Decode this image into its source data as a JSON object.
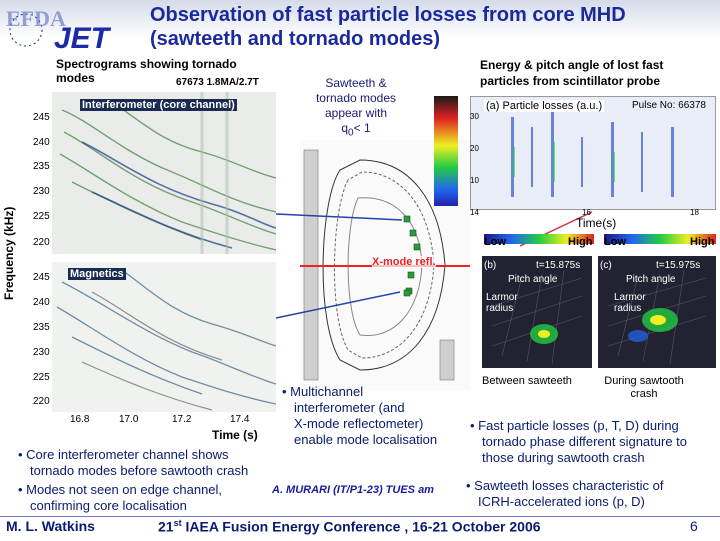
{
  "header": {
    "title_line1": "Observation of fast particle losses from core MHD",
    "title_line2": "(sawteeth and tornado modes)",
    "logo_efda": "EFDA",
    "logo_jet": "JET"
  },
  "left": {
    "heading_line1": "Spectrograms showing tornado",
    "heading_line2": "modes",
    "shot_info": "67673 1.8MA/2.7T",
    "ylabel": "Frequency (kHz)",
    "panel1_label": "Interferometer (core channel)",
    "panel2_label": "Magnetics",
    "panel1_ticks": [
      "245",
      "240",
      "235",
      "230",
      "225",
      "220"
    ],
    "panel2_ticks": [
      "245",
      "240",
      "235",
      "230",
      "225",
      "220"
    ],
    "xticks": [
      "16.8",
      "17.0",
      "17.2",
      "17.4"
    ],
    "xlabel": "Time (s)"
  },
  "middle": {
    "note_line1": "Sawteeth &",
    "note_line2": "tornado modes",
    "note_line3": "appear with",
    "note_line4": "q",
    "note_sub": "0",
    "note_tail": "< 1",
    "xmode_label": "X-mode refl."
  },
  "right": {
    "heading_line1": "Energy & pitch angle of lost fast",
    "heading_line2": "particles from scintillator probe",
    "plot_title": "(a) Particle losses (a.u.)",
    "pulse": "Pulse No: 66378",
    "yticks": [
      "30",
      "20",
      "10"
    ],
    "xticks": [
      "14",
      "16",
      "18"
    ],
    "xlabel": "Time(s)",
    "low1": "Low",
    "high1": "High",
    "low2": "Low",
    "high2": "High",
    "img_b_label": "(b)",
    "img_b_time": "t=15.875s",
    "img_c_label": "(c)",
    "img_c_time": "t=15.975s",
    "pitch_angle": "Pitch angle",
    "larmor_line1": "Larmor",
    "larmor_line2": "radius",
    "caption_b": "Between sawteeth",
    "caption_c_line1": "During sawtooth",
    "caption_c_line2": "crash"
  },
  "bullets": {
    "multichannel_line1": "• Multichannel",
    "multichannel_line2": "interferometer (and",
    "multichannel_line3": "X-mode reflectometer)",
    "multichannel_line4": "enable mode localisation",
    "fast_line1": "• Fast particle losses (p, T, D) during",
    "fast_line2": "tornado phase different signature to",
    "fast_line3": "those during sawtooth crash",
    "core_line1": "• Core interferometer channel shows",
    "core_line2": "tornado modes before sawtooth crash",
    "modes_line1": "• Modes not seen on edge channel,",
    "modes_line2": "confirming core localisation",
    "saw_line1": "• Sawteeth losses characteristic of",
    "saw_line2": "ICRH-accelerated ions (p, D)",
    "reference": "A. MURARI (IT/P1-23) TUES am"
  },
  "footer": {
    "author": "M. L. Watkins",
    "conference_sup": "st",
    "conference_num": "21",
    "conference": " IAEA Fusion Energy Conference , 16-21 October 2006",
    "page": "6"
  }
}
